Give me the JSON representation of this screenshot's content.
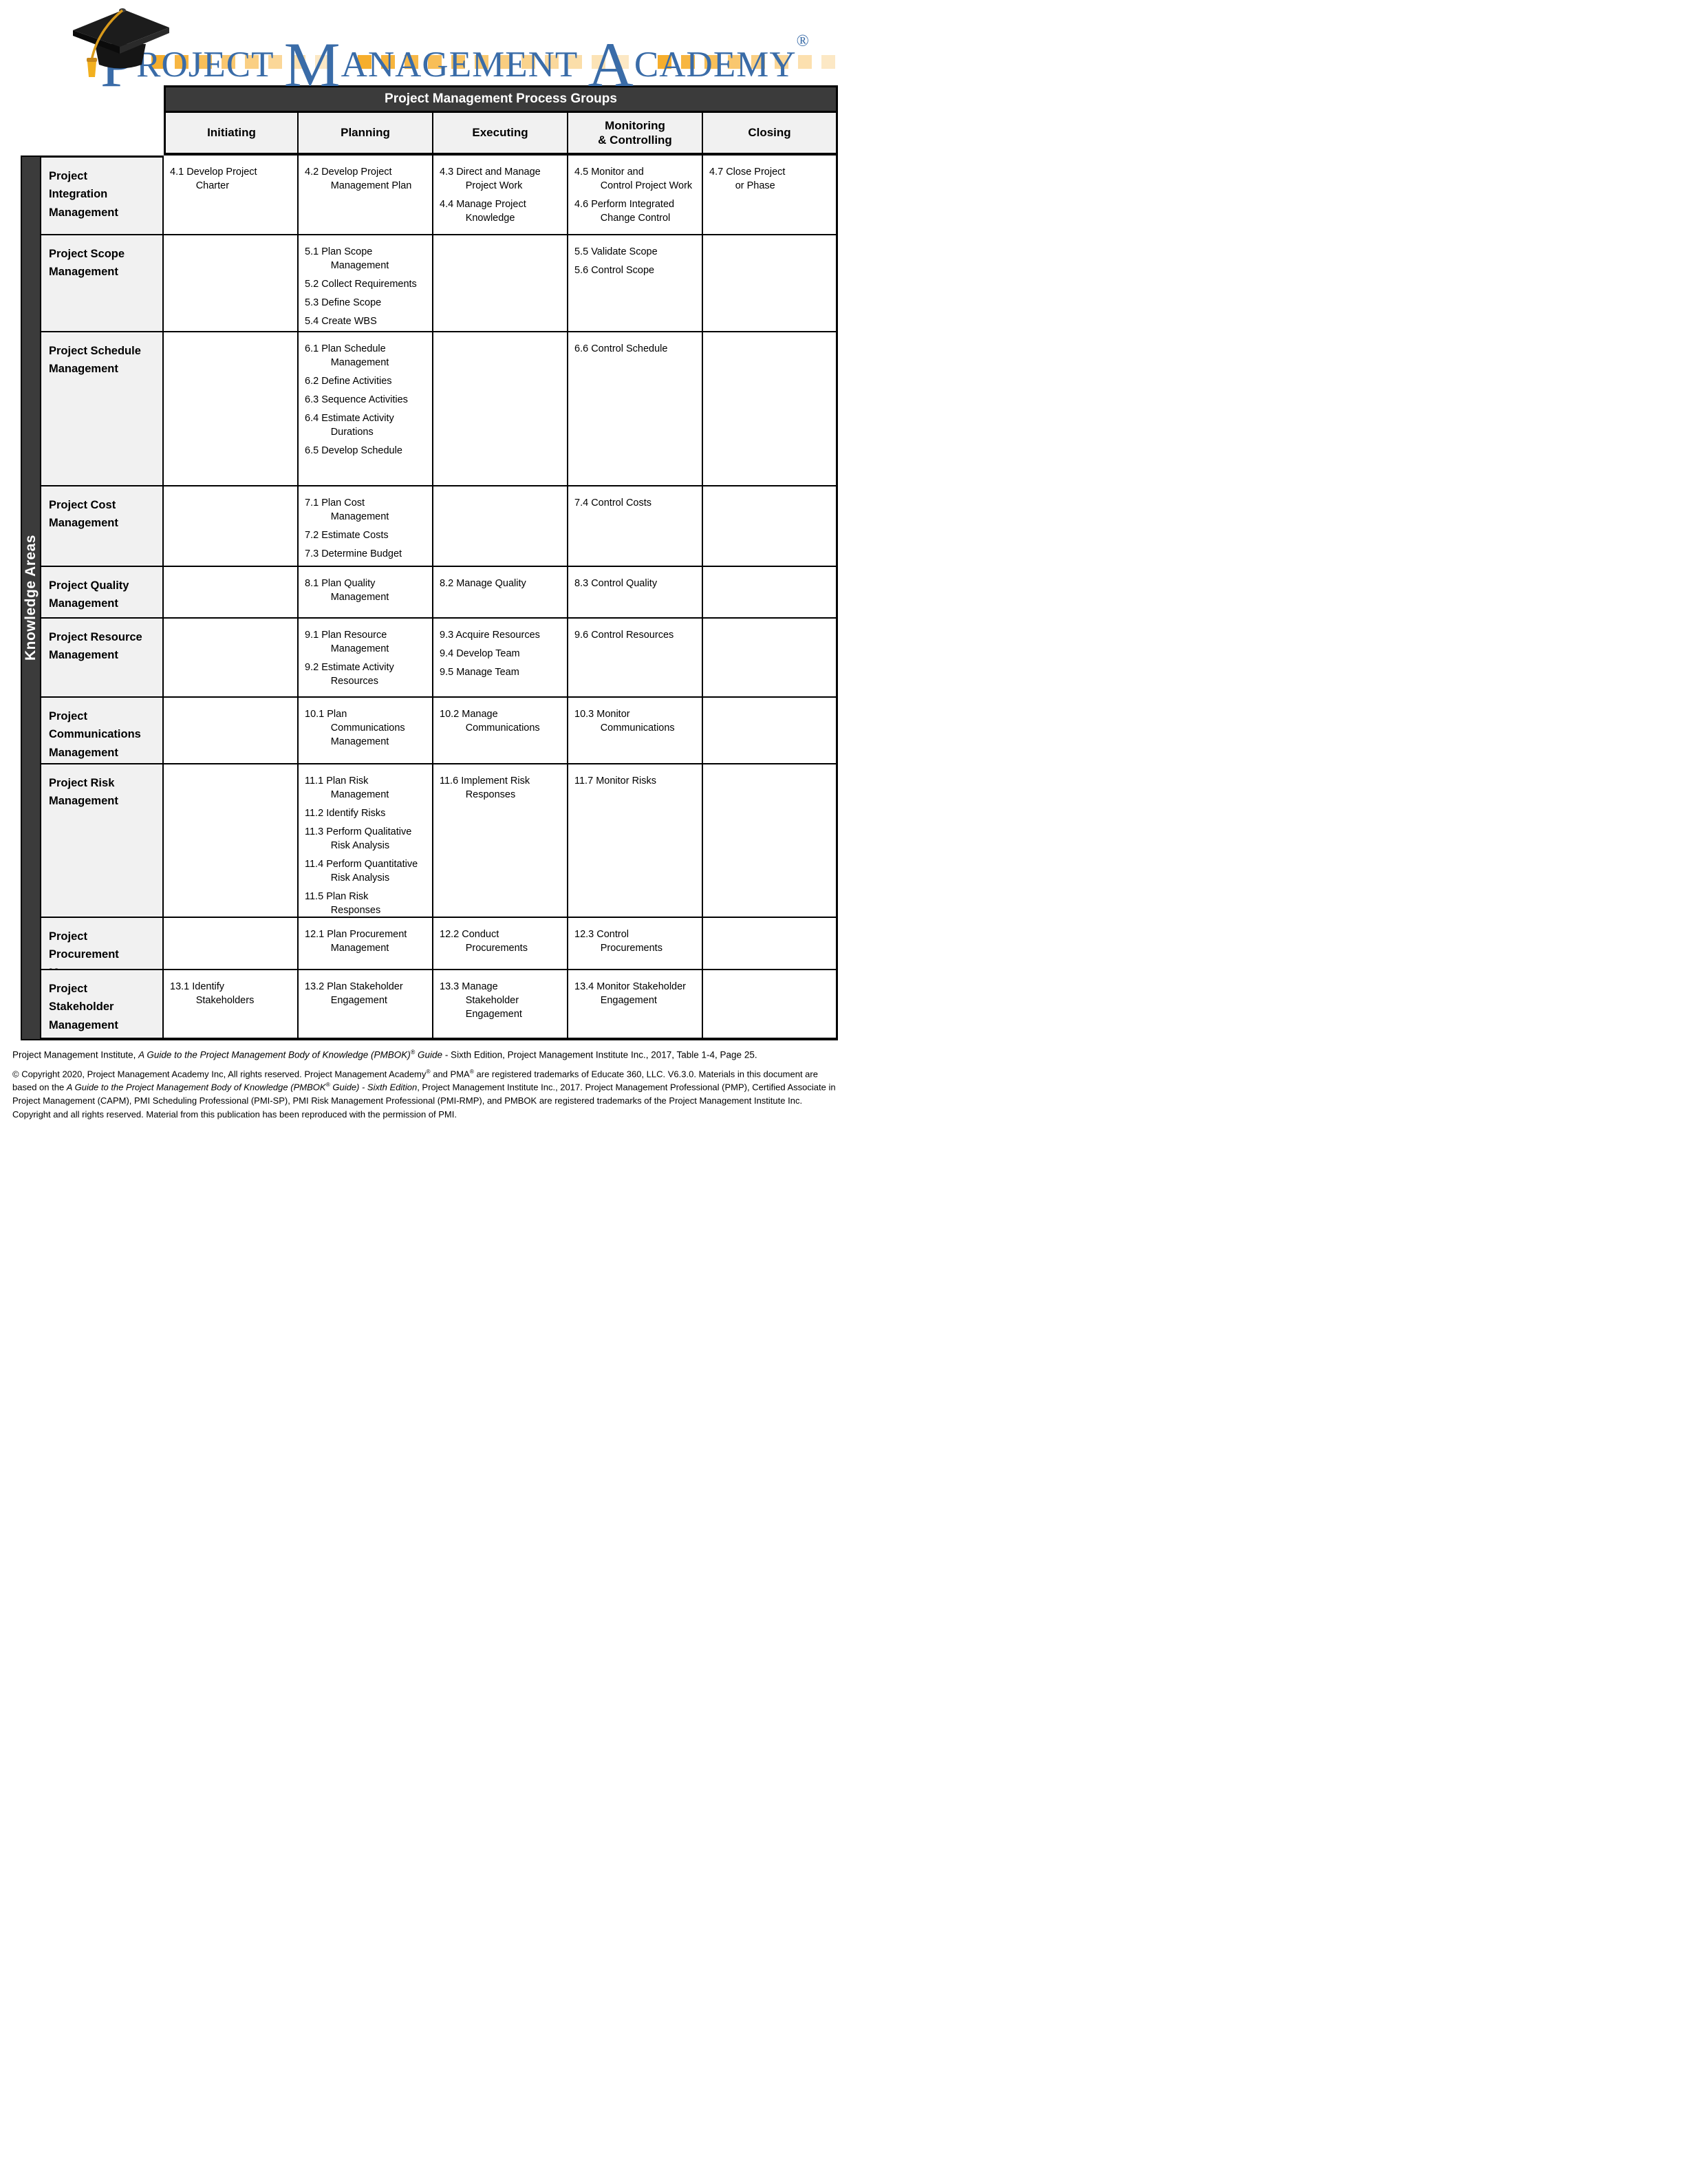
{
  "logo": {
    "word1_initial": "P",
    "word1_rest": "ROJECT",
    "word2_initial": "M",
    "word2_rest": "ANAGEMENT",
    "word3_initial": "A",
    "word3_rest": "CADEMY",
    "registered_mark": "®",
    "squares_per_group": [
      8,
      12,
      8
    ]
  },
  "colors": {
    "brand_blue": "#3A6CA8",
    "square_gold": "#F6AE2D",
    "header_bg": "#3B3B3B",
    "header_text": "#FFFFFF",
    "subheader_bg": "#F1F1F1",
    "border": "#000000"
  },
  "table": {
    "banner": "Project Management Process Groups",
    "row_axis_label": "Knowledge Areas",
    "column_headers": [
      "Initiating",
      "Planning",
      "Executing",
      "Monitoring\n& Controlling",
      "Closing"
    ],
    "rows": [
      {
        "area": "Project\nIntegration\nManagement",
        "cells": [
          [
            {
              "num": "4.1",
              "name": "Develop Project\nCharter"
            }
          ],
          [
            {
              "num": "4.2",
              "name": "Develop Project\nManagement Plan"
            }
          ],
          [
            {
              "num": "4.3",
              "name": "Direct and Manage\nProject Work"
            },
            {
              "num": "4.4",
              "name": "Manage Project\nKnowledge"
            }
          ],
          [
            {
              "num": "4.5",
              "name": "Monitor and\nControl Project Work"
            },
            {
              "num": "4.6",
              "name": "Perform Integrated\nChange Control"
            }
          ],
          [
            {
              "num": "4.7",
              "name": "Close Project\nor Phase"
            }
          ]
        ]
      },
      {
        "area": "Project Scope\nManagement",
        "cells": [
          [],
          [
            {
              "num": "5.1",
              "name": "Plan Scope\nManagement"
            },
            {
              "num": "5.2",
              "name": "Collect Requirements"
            },
            {
              "num": "5.3",
              "name": "Define Scope"
            },
            {
              "num": "5.4",
              "name": "Create WBS"
            }
          ],
          [],
          [
            {
              "num": "5.5",
              "name": "Validate Scope"
            },
            {
              "num": "5.6",
              "name": "Control Scope"
            }
          ],
          []
        ]
      },
      {
        "area": "Project Schedule\nManagement",
        "cells": [
          [],
          [
            {
              "num": "6.1",
              "name": "Plan Schedule\nManagement"
            },
            {
              "num": "6.2",
              "name": "Define Activities"
            },
            {
              "num": "6.3",
              "name": "Sequence Activities"
            },
            {
              "num": "6.4",
              "name": "Estimate Activity\nDurations"
            },
            {
              "num": "6.5",
              "name": "Develop Schedule"
            }
          ],
          [],
          [
            {
              "num": "6.6",
              "name": "Control Schedule"
            }
          ],
          []
        ]
      },
      {
        "area": "Project Cost\nManagement",
        "cells": [
          [],
          [
            {
              "num": "7.1",
              "name": "Plan Cost\nManagement"
            },
            {
              "num": "7.2",
              "name": "Estimate Costs"
            },
            {
              "num": "7.3",
              "name": "Determine Budget"
            }
          ],
          [],
          [
            {
              "num": "7.4",
              "name": "Control Costs"
            }
          ],
          []
        ]
      },
      {
        "area": "Project Quality\nManagement",
        "cells": [
          [],
          [
            {
              "num": "8.1",
              "name": "Plan Quality\nManagement"
            }
          ],
          [
            {
              "num": "8.2",
              "name": "Manage Quality"
            }
          ],
          [
            {
              "num": "8.3",
              "name": "Control Quality"
            }
          ],
          []
        ]
      },
      {
        "area": "Project Resource\nManagement",
        "cells": [
          [],
          [
            {
              "num": "9.1",
              "name": "Plan Resource\nManagement"
            },
            {
              "num": "9.2",
              "name": "Estimate Activity\nResources"
            }
          ],
          [
            {
              "num": "9.3",
              "name": "Acquire Resources"
            },
            {
              "num": "9.4",
              "name": "Develop Team"
            },
            {
              "num": "9.5",
              "name": "Manage Team"
            }
          ],
          [
            {
              "num": "9.6",
              "name": "Control Resources"
            }
          ],
          []
        ]
      },
      {
        "area": "Project\nCommunications\nManagement",
        "cells": [
          [],
          [
            {
              "num": "10.1",
              "name": "Plan\nCommunications\nManagement"
            }
          ],
          [
            {
              "num": "10.2",
              "name": "Manage\nCommunications"
            }
          ],
          [
            {
              "num": "10.3",
              "name": "Monitor\nCommunications"
            }
          ],
          []
        ]
      },
      {
        "area": "Project Risk\nManagement",
        "cells": [
          [],
          [
            {
              "num": "11.1",
              "name": "Plan Risk\nManagement"
            },
            {
              "num": "11.2",
              "name": "Identify Risks"
            },
            {
              "num": "11.3",
              "name": "Perform Qualitative\nRisk Analysis"
            },
            {
              "num": "11.4",
              "name": "Perform Quantitative\nRisk Analysis"
            },
            {
              "num": "11.5",
              "name": "Plan Risk\nResponses"
            }
          ],
          [
            {
              "num": "11.6",
              "name": "Implement Risk\nResponses"
            }
          ],
          [
            {
              "num": "11.7",
              "name": "Monitor Risks"
            }
          ],
          []
        ]
      },
      {
        "area": "Project\nProcurement\nManagement",
        "cells": [
          [],
          [
            {
              "num": "12.1",
              "name": "Plan Procurement\nManagement"
            }
          ],
          [
            {
              "num": "12.2",
              "name": "Conduct\nProcurements"
            }
          ],
          [
            {
              "num": "12.3",
              "name": "Control\nProcurements"
            }
          ],
          []
        ]
      },
      {
        "area": "Project\nStakeholder\nManagement",
        "cells": [
          [
            {
              "num": "13.1",
              "name": "Identify\nStakeholders"
            }
          ],
          [
            {
              "num": "13.2",
              "name": "Plan Stakeholder\nEngagement"
            }
          ],
          [
            {
              "num": "13.3",
              "name": "Manage\nStakeholder\nEngagement"
            }
          ],
          [
            {
              "num": "13.4",
              "name": "Monitor Stakeholder\nEngagement"
            }
          ],
          []
        ]
      }
    ]
  },
  "footer": {
    "source_parts": [
      {
        "t": "Project Management Institute, "
      },
      {
        "t": "A Guide to the Project Management Body of Knowledge (PMBOK)",
        "i": true
      },
      {
        "t": "®",
        "sup": true
      },
      {
        "t": " Guide",
        "i": true
      },
      {
        "t": " - Sixth Edition, Project Management Institute Inc., 2017, Table 1-4, Page 25."
      }
    ],
    "copyright_parts": [
      {
        "t": "© Copyright 2020, Project Management Academy Inc, All rights reserved. Project Management Academy"
      },
      {
        "t": "®",
        "sup": true
      },
      {
        "t": " and PMA"
      },
      {
        "t": "®",
        "sup": true
      },
      {
        "t": " are registered trademarks of Educate 360, LLC. V6.3.0. Materials in this document are based on the "
      },
      {
        "t": "A Guide to the Project Management Body of Knowledge (PMBOK",
        "i": true
      },
      {
        "t": "®",
        "sup": true,
        "i": true
      },
      {
        "t": " Guide) - Sixth Edition",
        "i": true
      },
      {
        "t": ", Project Management Institute Inc., 2017. Project Management Professional (PMP), Certified Associate in Project Management (CAPM), PMI Scheduling Professional (PMI-SP), PMI Risk Management Professional (PMI-RMP), and PMBOK are registered trademarks of the Project Management Institute Inc. Copyright and all rights reserved. Material from this publication has been reproduced with the permission of PMI."
      }
    ]
  }
}
